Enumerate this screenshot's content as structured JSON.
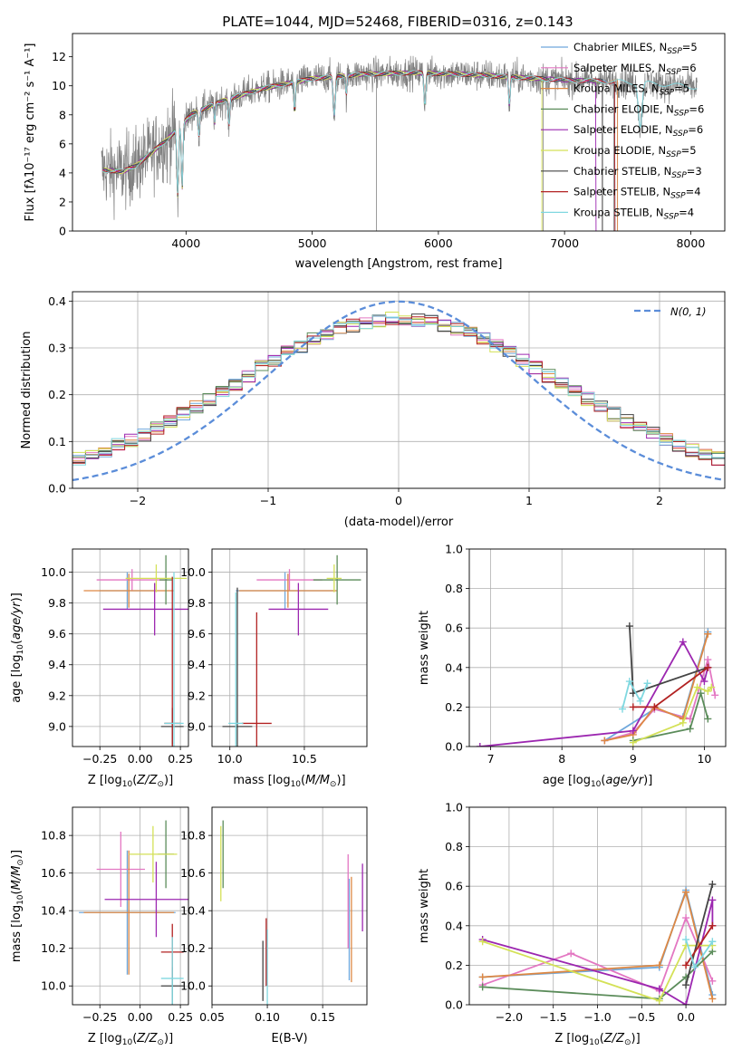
{
  "figure": {
    "title": "PLATE=1044, MJD=52468, FIBERID=0316, z=0.143"
  },
  "chart_data": [
    {
      "id": "spectrum",
      "type": "line",
      "xlabel": "wavelength [Angstrom, rest frame]",
      "ylabel": "Flux [fλ10⁻¹⁷ erg cm⁻² s⁻¹ A⁻¹]",
      "xlim": [
        3100,
        8270
      ],
      "ylim": [
        0,
        13.6
      ],
      "xticks": [
        "4000",
        "5000",
        "6000",
        "7000",
        "8000"
      ],
      "yticks": [
        "0",
        "2",
        "4",
        "6",
        "8",
        "10",
        "12"
      ],
      "legend_position": "top-right",
      "data_color": "#808080",
      "continuum": {
        "x": [
          3330,
          3500,
          3600,
          3700,
          3850,
          3950,
          4050,
          4300,
          4600,
          5000,
          5400,
          5800,
          6200,
          6600,
          7000,
          7400,
          7800,
          8050
        ],
        "y": [
          4.2,
          4.1,
          4.5,
          5.2,
          6.3,
          7.2,
          8.1,
          9.0,
          9.8,
          10.5,
          10.8,
          10.9,
          10.8,
          10.6,
          10.4,
          10.3,
          10.1,
          9.9
        ]
      },
      "series": [
        {
          "name": "Chabrier MILES, N_SSP=5",
          "label_main": "Chabrier MILES, N",
          "label_sub": "SSP",
          "label_tail": "=5",
          "color": "#6fa8dc"
        },
        {
          "name": "Salpeter MILES, N_SSP=6",
          "label_main": "Salpeter MILES, N",
          "label_sub": "SSP",
          "label_tail": "=6",
          "color": "#e377c2"
        },
        {
          "name": "Kroupa MILES, N_SSP=5",
          "label_main": "Kroupa MILES, N",
          "label_sub": "SSP",
          "label_tail": "=5",
          "color": "#dd8844"
        },
        {
          "name": "Chabrier ELODIE, N_SSP=6",
          "label_main": "Chabrier ELODIE, N",
          "label_sub": "SSP",
          "label_tail": "=6",
          "color": "#5b8c5a"
        },
        {
          "name": "Salpeter ELODIE, N_SSP=6",
          "label_main": "Salpeter ELODIE, N",
          "label_sub": "SSP",
          "label_tail": "=6",
          "color": "#9c27b0"
        },
        {
          "name": "Kroupa ELODIE, N_SSP=5",
          "label_main": "Kroupa ELODIE, N",
          "label_sub": "SSP",
          "label_tail": "=5",
          "color": "#d4e157"
        },
        {
          "name": "Chabrier STELIB, N_SSP=3",
          "label_main": "Chabrier STELIB, N",
          "label_sub": "SSP",
          "label_tail": "=3",
          "color": "#444444"
        },
        {
          "name": "Salpeter STELIB, N_SSP=4",
          "label_main": "Salpeter STELIB, N",
          "label_sub": "SSP",
          "label_tail": "=4",
          "color": "#b22222"
        },
        {
          "name": "Kroupa STELIB, N_SSP=4",
          "label_main": "Kroupa STELIB, N",
          "label_sub": "SSP",
          "label_tail": "=4",
          "color": "#80d8e0"
        }
      ]
    },
    {
      "id": "residuals",
      "type": "histogram",
      "xlabel": "(data-model)/error",
      "ylabel": "Normed distribution",
      "xlim": [
        -2.5,
        2.5
      ],
      "ylim": [
        0,
        0.42
      ],
      "xticks": [
        "−2",
        "−1",
        "0",
        "1",
        "2"
      ],
      "yticks": [
        "0.0",
        "0.1",
        "0.2",
        "0.3",
        "0.4"
      ],
      "grid": true,
      "legend_position": "top-right",
      "gaussian_label": "N(0, 1)",
      "gaussian_color": "#5b8dd9",
      "bin_width": 0.1
    },
    {
      "id": "age-Z",
      "type": "errorbar",
      "xlabel": "Z [log10(Z/Z⊙)]",
      "ylabel": "age [log10(age/yr)]",
      "xlim": [
        -0.42,
        0.3
      ],
      "ylim": [
        8.87,
        10.15
      ],
      "xticks": [
        "−0.25",
        "0.00",
        "0.25"
      ],
      "yticks": [
        "9.0",
        "9.2",
        "9.4",
        "9.6",
        "9.8",
        "10.0"
      ],
      "grid": true,
      "points": [
        {
          "x": -0.08,
          "xerr": 0.17,
          "y": 9.88,
          "yerr": 0.12,
          "color": "#6fa8dc"
        },
        {
          "x": -0.05,
          "xerr": 0.22,
          "y": 9.95,
          "yerr": 0.07,
          "color": "#e377c2"
        },
        {
          "x": -0.07,
          "xerr": 0.28,
          "y": 9.88,
          "yerr": 0.11,
          "color": "#dd8844"
        },
        {
          "x": 0.16,
          "xerr": 0.04,
          "y": 9.95,
          "yerr": 0.16,
          "color": "#5b8c5a"
        },
        {
          "x": 0.09,
          "xerr": 0.32,
          "y": 9.76,
          "yerr": 0.17,
          "color": "#9c27b0"
        },
        {
          "x": 0.1,
          "xerr": 0.19,
          "y": 9.96,
          "yerr": 0.09,
          "color": "#d4e157"
        },
        {
          "x": 0.2,
          "xerr": 0.07,
          "y": 9.0,
          "yerr": 0.12,
          "color": "#444444"
        },
        {
          "x": 0.2,
          "xerr": 0.05,
          "y": 9.02,
          "yerr": 0.95,
          "color": "#b22222"
        },
        {
          "x": 0.21,
          "xerr": 0.06,
          "y": 9.02,
          "yerr": 0.98,
          "color": "#80d8e0"
        }
      ]
    },
    {
      "id": "age-mass",
      "type": "errorbar",
      "xlabel": "mass [log10(M/M⊙)]",
      "ylabel": "",
      "xlim": [
        9.88,
        10.92
      ],
      "ylim": [
        8.87,
        10.15
      ],
      "xticks": [
        "10.0",
        "10.5"
      ],
      "yticks": [
        "9.0",
        "9.2",
        "9.4",
        "9.6",
        "9.8",
        "10.0"
      ],
      "grid": true,
      "points": [
        {
          "x": 10.37,
          "xerr": 0.33,
          "y": 9.88,
          "yerr": 0.12,
          "color": "#6fa8dc"
        },
        {
          "x": 10.4,
          "xerr": 0.22,
          "y": 9.95,
          "yerr": 0.07,
          "color": "#e377c2"
        },
        {
          "x": 10.39,
          "xerr": 0.33,
          "y": 9.88,
          "yerr": 0.11,
          "color": "#dd8844"
        },
        {
          "x": 10.72,
          "xerr": 0.16,
          "y": 9.95,
          "yerr": 0.16,
          "color": "#5b8c5a"
        },
        {
          "x": 10.46,
          "xerr": 0.2,
          "y": 9.76,
          "yerr": 0.17,
          "color": "#9c27b0"
        },
        {
          "x": 10.7,
          "xerr": 0.05,
          "y": 9.96,
          "yerr": 0.09,
          "color": "#d4e157"
        },
        {
          "x": 10.05,
          "xerr": 0.1,
          "y": 9.0,
          "yerr": 0.9,
          "color": "#444444"
        },
        {
          "x": 10.18,
          "xerr": 0.1,
          "y": 9.02,
          "yerr": 0.72,
          "color": "#b22222"
        },
        {
          "x": 10.04,
          "xerr": 0.05,
          "y": 9.02,
          "yerr": 0.85,
          "color": "#80d8e0"
        }
      ]
    },
    {
      "id": "weight-age",
      "type": "line",
      "xlabel": "age [log10(age/yr)]",
      "ylabel": "mass weight",
      "xlim": [
        6.7,
        10.3
      ],
      "ylim": [
        0,
        1.0
      ],
      "xticks": [
        "7",
        "8",
        "9",
        "10"
      ],
      "yticks": [
        "0.0",
        "0.2",
        "0.4",
        "0.6",
        "0.8",
        "1.0"
      ],
      "grid": true,
      "series": [
        {
          "color": "#6fa8dc",
          "x": [
            8.6,
            9.3,
            9.7,
            10.05
          ],
          "y": [
            0.03,
            0.19,
            0.15,
            0.58
          ]
        },
        {
          "color": "#e377c2",
          "x": [
            8.6,
            9.0,
            9.3,
            9.8,
            10.05,
            10.15
          ],
          "y": [
            0.03,
            0.07,
            0.19,
            0.14,
            0.44,
            0.26
          ]
        },
        {
          "color": "#dd8844",
          "x": [
            8.6,
            9.0,
            9.3,
            9.7,
            10.05
          ],
          "y": [
            0.03,
            0.06,
            0.2,
            0.14,
            0.57
          ]
        },
        {
          "color": "#5b8c5a",
          "x": [
            9.0,
            9.8,
            9.95,
            10.05
          ],
          "y": [
            0.03,
            0.09,
            0.27,
            0.14
          ]
        },
        {
          "color": "#9c27b0",
          "x": [
            6.85,
            9.0,
            9.7,
            10.0,
            10.05
          ],
          "y": [
            0.0,
            0.08,
            0.53,
            0.33,
            0.4
          ]
        },
        {
          "color": "#d4e157",
          "x": [
            9.0,
            9.7,
            9.9,
            10.05,
            10.1
          ],
          "y": [
            0.02,
            0.12,
            0.3,
            0.28,
            0.3
          ]
        },
        {
          "color": "#444444",
          "x": [
            8.95,
            9.0,
            10.05
          ],
          "y": [
            0.61,
            0.27,
            0.4
          ]
        },
        {
          "color": "#b22222",
          "x": [
            9.0,
            9.3,
            10.05
          ],
          "y": [
            0.2,
            0.2,
            0.4
          ]
        },
        {
          "color": "#80d8e0",
          "x": [
            8.85,
            8.95,
            9.1,
            9.2
          ],
          "y": [
            0.19,
            0.33,
            0.23,
            0.32
          ]
        }
      ]
    },
    {
      "id": "mass-Z",
      "type": "errorbar",
      "xlabel": "Z [log10(Z/Z⊙)]",
      "ylabel": "mass [log10(M/M⊙)]",
      "xlim": [
        -0.42,
        0.3
      ],
      "ylim": [
        9.9,
        10.95
      ],
      "xticks": [
        "−0.25",
        "0.00",
        "0.25"
      ],
      "yticks": [
        "10.0",
        "10.2",
        "10.4",
        "10.6",
        "10.8"
      ],
      "grid": true,
      "points": [
        {
          "x": -0.08,
          "xerr": 0.3,
          "y": 10.39,
          "yerr": 0.33,
          "color": "#6fa8dc"
        },
        {
          "x": -0.12,
          "xerr": 0.15,
          "y": 10.62,
          "yerr": 0.2,
          "color": "#e377c2"
        },
        {
          "x": -0.07,
          "xerr": 0.28,
          "y": 10.39,
          "yerr": 0.33,
          "color": "#dd8844"
        },
        {
          "x": 0.16,
          "xerr": 0.05,
          "y": 10.7,
          "yerr": 0.18,
          "color": "#5b8c5a"
        },
        {
          "x": 0.1,
          "xerr": 0.32,
          "y": 10.46,
          "yerr": 0.2,
          "color": "#9c27b0"
        },
        {
          "x": 0.08,
          "xerr": 0.15,
          "y": 10.7,
          "yerr": 0.15,
          "color": "#d4e157"
        },
        {
          "x": 0.2,
          "xerr": 0.07,
          "y": 10.0,
          "yerr": 0.1,
          "color": "#444444"
        },
        {
          "x": 0.2,
          "xerr": 0.07,
          "y": 10.18,
          "yerr": 0.15,
          "color": "#b22222"
        },
        {
          "x": 0.2,
          "xerr": 0.07,
          "y": 10.04,
          "yerr": 0.22,
          "color": "#80d8e0"
        }
      ]
    },
    {
      "id": "mass-EBV",
      "type": "errorbar",
      "xlabel": "E(B-V)",
      "ylabel": "",
      "xlim": [
        0.05,
        0.19
      ],
      "ylim": [
        9.9,
        10.95
      ],
      "xticks": [
        "0.05",
        "0.10",
        "0.15"
      ],
      "yticks": [
        "10.0",
        "10.2",
        "10.4",
        "10.6",
        "10.8"
      ],
      "grid": true,
      "points": [
        {
          "x": 0.174,
          "y": 10.3,
          "yerr": 0.27,
          "color": "#6fa8dc"
        },
        {
          "x": 0.173,
          "y": 10.45,
          "yerr": 0.25,
          "color": "#e377c2"
        },
        {
          "x": 0.176,
          "y": 10.3,
          "yerr": 0.28,
          "color": "#dd8844"
        },
        {
          "x": 0.06,
          "y": 10.7,
          "yerr": 0.18,
          "color": "#5b8c5a"
        },
        {
          "x": 0.186,
          "y": 10.47,
          "yerr": 0.18,
          "color": "#9c27b0"
        },
        {
          "x": 0.058,
          "y": 10.65,
          "yerr": 0.2,
          "color": "#d4e157"
        },
        {
          "x": 0.096,
          "y": 10.08,
          "yerr": 0.16,
          "color": "#444444"
        },
        {
          "x": 0.099,
          "y": 10.18,
          "yerr": 0.18,
          "color": "#b22222"
        },
        {
          "x": 0.1,
          "y": 10.1,
          "yerr": 0.2,
          "color": "#80d8e0"
        }
      ]
    },
    {
      "id": "weight-Z",
      "type": "line",
      "xlabel": "Z [log10(Z/Z⊙)]",
      "ylabel": "mass weight",
      "xlim": [
        -2.45,
        0.45
      ],
      "ylim": [
        0,
        1.0
      ],
      "xticks": [
        "−2.0",
        "−1.5",
        "−1.0",
        "−0.5",
        "0.0"
      ],
      "yticks": [
        "0.0",
        "0.2",
        "0.4",
        "0.6",
        "0.8",
        "1.0"
      ],
      "grid": true,
      "series": [
        {
          "color": "#6fa8dc",
          "x": [
            -2.3,
            -0.3,
            0.0,
            0.3
          ],
          "y": [
            0.14,
            0.19,
            0.58,
            0.05
          ]
        },
        {
          "color": "#e377c2",
          "x": [
            -2.3,
            -1.3,
            -0.3,
            0.0,
            0.3
          ],
          "y": [
            0.1,
            0.26,
            0.07,
            0.44,
            0.12
          ]
        },
        {
          "color": "#dd8844",
          "x": [
            -2.3,
            -0.3,
            0.0,
            0.3
          ],
          "y": [
            0.14,
            0.2,
            0.57,
            0.03
          ]
        },
        {
          "color": "#5b8c5a",
          "x": [
            -2.3,
            -0.3,
            0.0,
            0.3
          ],
          "y": [
            0.09,
            0.03,
            0.14,
            0.27
          ]
        },
        {
          "color": "#9c27b0",
          "x": [
            -2.3,
            -0.3,
            0.0,
            0.3,
            0.3
          ],
          "y": [
            0.33,
            0.08,
            0.0,
            0.53,
            0.4
          ]
        },
        {
          "color": "#d4e157",
          "x": [
            -2.3,
            -0.3,
            0.0,
            0.3
          ],
          "y": [
            0.32,
            0.02,
            0.3,
            0.3
          ]
        },
        {
          "color": "#444444",
          "x": [
            0.0,
            0.3
          ],
          "y": [
            0.1,
            0.61
          ]
        },
        {
          "color": "#b22222",
          "x": [
            0.0,
            0.3
          ],
          "y": [
            0.2,
            0.4
          ]
        },
        {
          "color": "#80d8e0",
          "x": [
            0.0,
            0.1,
            0.3
          ],
          "y": [
            0.33,
            0.19,
            0.32
          ]
        }
      ]
    }
  ]
}
